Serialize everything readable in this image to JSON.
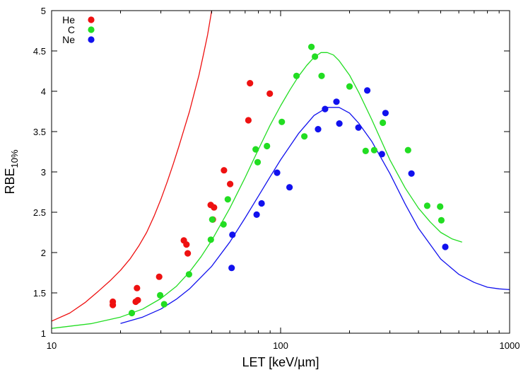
{
  "chart_data": {
    "type": "scatter",
    "title": "",
    "xlabel": "LET [keV/µm]",
    "ylabel_main": "RBE",
    "ylabel_sub": "10%",
    "xscale": "log",
    "xlim": [
      10,
      1000
    ],
    "ylim": [
      1,
      5
    ],
    "x_ticks": [
      10,
      100,
      1000
    ],
    "x_tick_labels": [
      "10",
      "100",
      "1000"
    ],
    "y_ticks": [
      1,
      1.5,
      2,
      2.5,
      3,
      3.5,
      4,
      4.5,
      5
    ],
    "y_tick_labels": [
      "1",
      "1.5",
      "2",
      "2.5",
      "3",
      "3.5",
      "4",
      "4.5",
      "5"
    ],
    "grid": false,
    "legend_position": "top-left",
    "series": [
      {
        "name": "He",
        "color": "#ee1111",
        "points": [
          [
            18.5,
            1.39
          ],
          [
            18.5,
            1.35
          ],
          [
            23.3,
            1.39
          ],
          [
            23.8,
            1.41
          ],
          [
            23.6,
            1.56
          ],
          [
            29.5,
            1.7
          ],
          [
            37.8,
            2.15
          ],
          [
            38.8,
            2.1
          ],
          [
            39.3,
            1.99
          ],
          [
            49.5,
            2.59
          ],
          [
            51.2,
            2.56
          ],
          [
            50.6,
            2.41
          ],
          [
            56.6,
            3.02
          ],
          [
            60.2,
            2.85
          ],
          [
            72.3,
            3.64
          ],
          [
            73.5,
            4.1
          ],
          [
            89.7,
            3.97
          ]
        ],
        "curve": [
          [
            10,
            1.15
          ],
          [
            12,
            1.25
          ],
          [
            14,
            1.38
          ],
          [
            16,
            1.52
          ],
          [
            18,
            1.65
          ],
          [
            20,
            1.78
          ],
          [
            22,
            1.92
          ],
          [
            24,
            2.08
          ],
          [
            26,
            2.25
          ],
          [
            28,
            2.45
          ],
          [
            30,
            2.66
          ],
          [
            32,
            2.88
          ],
          [
            34,
            3.1
          ],
          [
            36,
            3.32
          ],
          [
            38,
            3.54
          ],
          [
            40,
            3.75
          ],
          [
            42,
            3.98
          ],
          [
            44,
            4.2
          ],
          [
            46,
            4.45
          ],
          [
            48,
            4.7
          ],
          [
            50,
            5.0
          ]
        ]
      },
      {
        "name": "C",
        "color": "#22dd22",
        "points": [
          [
            22.4,
            1.25
          ],
          [
            29.8,
            1.47
          ],
          [
            31,
            1.36
          ],
          [
            39.8,
            1.73
          ],
          [
            49.6,
            2.16
          ],
          [
            50.3,
            2.41
          ],
          [
            56.3,
            2.35
          ],
          [
            58.8,
            2.66
          ],
          [
            77.8,
            3.28
          ],
          [
            79.4,
            3.12
          ],
          [
            87.2,
            3.32
          ],
          [
            101.2,
            3.62
          ],
          [
            117.3,
            4.19
          ],
          [
            127,
            3.44
          ],
          [
            136.3,
            4.55
          ],
          [
            141.3,
            4.43
          ],
          [
            151,
            4.19
          ],
          [
            200,
            4.06
          ],
          [
            235.2,
            3.26
          ],
          [
            256.3,
            3.27
          ],
          [
            279.5,
            3.61
          ],
          [
            360.2,
            3.27
          ],
          [
            436.6,
            2.58
          ],
          [
            497.2,
            2.57
          ],
          [
            503.4,
            2.4
          ]
        ],
        "curve": [
          [
            10,
            1.06
          ],
          [
            15,
            1.12
          ],
          [
            20,
            1.2
          ],
          [
            25,
            1.3
          ],
          [
            30,
            1.43
          ],
          [
            35,
            1.58
          ],
          [
            40,
            1.76
          ],
          [
            45,
            1.95
          ],
          [
            50,
            2.15
          ],
          [
            60,
            2.55
          ],
          [
            70,
            2.93
          ],
          [
            80,
            3.28
          ],
          [
            90,
            3.58
          ],
          [
            100,
            3.82
          ],
          [
            110,
            4.02
          ],
          [
            120,
            4.19
          ],
          [
            130,
            4.32
          ],
          [
            140,
            4.42
          ],
          [
            150,
            4.48
          ],
          [
            160,
            4.48
          ],
          [
            170,
            4.45
          ],
          [
            180,
            4.38
          ],
          [
            200,
            4.2
          ],
          [
            220,
            3.98
          ],
          [
            250,
            3.65
          ],
          [
            300,
            3.15
          ],
          [
            350,
            2.8
          ],
          [
            400,
            2.55
          ],
          [
            450,
            2.38
          ],
          [
            500,
            2.25
          ],
          [
            560,
            2.17
          ],
          [
            620,
            2.13
          ]
        ]
      },
      {
        "name": "Ne",
        "color": "#1111ee",
        "points": [
          [
            61.1,
            1.81
          ],
          [
            61.6,
            2.22
          ],
          [
            78.6,
            2.47
          ],
          [
            82.6,
            2.61
          ],
          [
            96.5,
            2.99
          ],
          [
            109.4,
            2.81
          ],
          [
            145.7,
            3.53
          ],
          [
            156.4,
            3.78
          ],
          [
            175.3,
            3.87
          ],
          [
            180.5,
            3.6
          ],
          [
            218.7,
            3.55
          ],
          [
            239,
            4.01
          ],
          [
            276.8,
            3.22
          ],
          [
            287.1,
            3.73
          ],
          [
            372.6,
            2.98
          ],
          [
            523.6,
            2.07
          ]
        ],
        "curve": [
          [
            20,
            1.12
          ],
          [
            25,
            1.2
          ],
          [
            30,
            1.3
          ],
          [
            35,
            1.42
          ],
          [
            40,
            1.55
          ],
          [
            50,
            1.83
          ],
          [
            60,
            2.13
          ],
          [
            70,
            2.43
          ],
          [
            80,
            2.7
          ],
          [
            90,
            2.94
          ],
          [
            100,
            3.15
          ],
          [
            120,
            3.48
          ],
          [
            140,
            3.7
          ],
          [
            160,
            3.8
          ],
          [
            180,
            3.8
          ],
          [
            200,
            3.73
          ],
          [
            220,
            3.6
          ],
          [
            250,
            3.38
          ],
          [
            300,
            2.98
          ],
          [
            350,
            2.6
          ],
          [
            400,
            2.3
          ],
          [
            500,
            1.92
          ],
          [
            600,
            1.73
          ],
          [
            700,
            1.63
          ],
          [
            800,
            1.57
          ],
          [
            900,
            1.55
          ],
          [
            1000,
            1.54
          ]
        ]
      }
    ]
  }
}
